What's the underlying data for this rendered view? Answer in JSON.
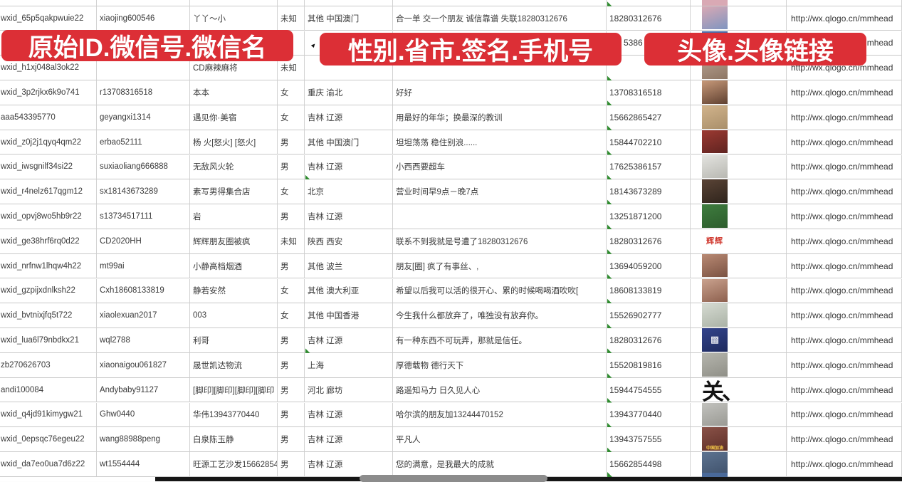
{
  "banners": [
    {
      "text": "原始ID.微信号.微信名"
    },
    {
      "text": "性别.省市.签名.手机号"
    },
    {
      "text": "头像.头像链接"
    }
  ],
  "colors": {
    "banner_red": "#dc2f36",
    "grid_line": "#c9c9c9",
    "cell_text": "#3a3a3a",
    "error_flag_green": "#2f8a2f",
    "scrollbar_thumb": "#8c8c8c",
    "scrollbar_track": "#161616"
  },
  "rows": [
    {
      "wxid": "wxid_65p5qakpwuie22",
      "account": "xiaojing600546",
      "name": "丫丫～小",
      "gender": "未知",
      "province": "其他 中国澳门",
      "signature": "合一单 交一个朋友 诚信靠谱 失联18280312676",
      "phone": "18280312676",
      "phone_flag": true,
      "phone_partial": false,
      "province_flag": false,
      "link": "http://wx.qlogo.cn/mmhead",
      "avatar": {
        "c1": "#d9a9b4",
        "c2": "#7f95c0",
        "label": "",
        "style": "photo"
      }
    },
    {
      "wxid": "",
      "account": "",
      "name": "",
      "gender": "",
      "province": "",
      "signature": "",
      "phone": "5386",
      "phone_flag": false,
      "phone_partial": true,
      "province_flag": false,
      "link": "http://wx.qlogo.cn/mmhead",
      "avatar": {
        "c1": "#4a72b0",
        "c2": "#3a5a94",
        "label": "",
        "style": "photo"
      }
    },
    {
      "wxid": "wxid_h1xj048al3ok22",
      "account": "",
      "name": "CD麻辣麻将",
      "gender": "未知",
      "province": "",
      "signature": "",
      "phone": "",
      "phone_flag": false,
      "phone_partial": false,
      "province_flag": false,
      "link": "http://wx.qlogo.cn/mmhead",
      "avatar": {
        "c1": "#b9a393",
        "c2": "#8d7664",
        "label": "",
        "style": "photo"
      }
    },
    {
      "wxid": "wxid_3p2rjkx6k9o741",
      "account": "r13708316518",
      "name": "本本",
      "gender": "女",
      "province": "重庆 渝北",
      "signature": "好好",
      "phone": "13708316518",
      "phone_flag": true,
      "phone_partial": false,
      "province_flag": false,
      "link": "http://wx.qlogo.cn/mmhead",
      "avatar": {
        "c1": "#c89a7a",
        "c2": "#5f4030",
        "label": "",
        "style": "photo"
      }
    },
    {
      "wxid": "aaa543395770",
      "account": "geyangxi1314",
      "name": "遇见你·美宿",
      "gender": "女",
      "province": "吉林 辽源",
      "signature": "用最好的年华；换最深的教训",
      "phone": "15662865427",
      "phone_flag": true,
      "phone_partial": false,
      "province_flag": false,
      "link": "http://wx.qlogo.cn/mmhead",
      "avatar": {
        "c1": "#d2b48c",
        "c2": "#a98f6a",
        "label": "",
        "style": "photo"
      }
    },
    {
      "wxid": "wxid_z0j2j1qyq4qm22",
      "account": "erbao52111",
      "name": "杨 火[怒火] [怒火]",
      "gender": "男",
      "province": "其他 中国澳门",
      "signature": "坦坦荡荡 稳住别浪......",
      "phone": "15844702210",
      "phone_flag": true,
      "phone_partial": false,
      "province_flag": false,
      "link": "http://wx.qlogo.cn/mmhead",
      "avatar": {
        "c1": "#9c3a32",
        "c2": "#5f2320",
        "label": "",
        "style": "photo"
      }
    },
    {
      "wxid": "wxid_iwsgnilf34si22",
      "account": "suxiaoliang666888",
      "name": "无敌风火轮",
      "gender": "男",
      "province": "吉林 辽源",
      "signature": "小西西要超车",
      "phone": "17625386157",
      "phone_flag": true,
      "phone_partial": false,
      "province_flag": false,
      "link": "http://wx.qlogo.cn/mmhead",
      "avatar": {
        "c1": "#e3e3df",
        "c2": "#b8b8b2",
        "label": "",
        "style": "photo"
      }
    },
    {
      "wxid": "wxid_r4nelz617qgm12",
      "account": "sx18143673289",
      "name": "素写男得集合店",
      "gender": "女",
      "province": "北京",
      "signature": "营业时间早9点－晚7点",
      "phone": "18143673289",
      "phone_flag": true,
      "phone_partial": false,
      "province_flag": true,
      "link": "http://wx.qlogo.cn/mmhead",
      "avatar": {
        "c1": "#5a4436",
        "c2": "#2f241c",
        "label": "",
        "style": "photo"
      }
    },
    {
      "wxid": "wxid_opvj8wo5hb9r22",
      "account": "s13734517111",
      "name": "岩",
      "gender": "男",
      "province": "吉林 辽源",
      "signature": "",
      "phone": "13251871200",
      "phone_flag": true,
      "phone_partial": false,
      "province_flag": false,
      "link": "http://wx.qlogo.cn/mmhead",
      "avatar": {
        "c1": "#3f7d3f",
        "c2": "#2c5c2c",
        "label": "",
        "style": "photo"
      }
    },
    {
      "wxid": "wxid_ge38hrf6rq0d22",
      "account": "CD2020HH",
      "name": "辉辉朋友圈被疯",
      "gender": "未知",
      "province": "陕西 西安",
      "signature": "联系不到我就是号遭了18280312676",
      "phone": "18280312676",
      "phone_flag": true,
      "phone_partial": false,
      "province_flag": false,
      "link": "http://wx.qlogo.cn/mmhead",
      "avatar": {
        "c1": "#ffffff",
        "c2": "#ffffff",
        "label": "辉辉",
        "label_color": "#d03a30",
        "style": "name-red"
      }
    },
    {
      "wxid": "wxid_nrfnw1lhqw4h22",
      "account": "mt99ai",
      "name": "小静高档烟酒",
      "gender": "男",
      "province": "其他 波兰",
      "signature": "朋友[圈] 疯了有事丝、,",
      "phone": "13694059200",
      "phone_flag": true,
      "phone_partial": false,
      "province_flag": false,
      "link": "http://wx.qlogo.cn/mmhead",
      "avatar": {
        "c1": "#b98a74",
        "c2": "#7a5242",
        "label": "",
        "style": "photo"
      }
    },
    {
      "wxid": "wxid_gzpijxdnlksh22",
      "account": "Cxh18608133819",
      "name": "静若安然",
      "gender": "女",
      "province": "其他 澳大利亚",
      "signature": "希望以后我可以活的很开心、累的时候喝喝酒吹吹[",
      "phone": "18608133819",
      "phone_flag": true,
      "phone_partial": false,
      "province_flag": false,
      "link": "http://wx.qlogo.cn/mmhead",
      "avatar": {
        "c1": "#caa28e",
        "c2": "#8d604e",
        "label": "",
        "style": "photo"
      }
    },
    {
      "wxid": "wxid_bvtnixjfq5t722",
      "account": "xiaolexuan2017",
      "name": "003",
      "gender": "女",
      "province": "其他 中国香港",
      "signature": "今生我什么都放弃了，唯独没有放弃你。",
      "phone": "15526902777",
      "phone_flag": true,
      "phone_partial": false,
      "province_flag": false,
      "link": "http://wx.qlogo.cn/mmhead",
      "avatar": {
        "c1": "#d6dbd2",
        "c2": "#aab2a6",
        "label": "",
        "style": "photo"
      }
    },
    {
      "wxid": "wxid_lua6l79nbdkx21",
      "account": "wql2788",
      "name": "利哥",
      "gender": "男",
      "province": "吉林 辽源",
      "signature": "有一种东西不可玩弄，那就是信任。",
      "phone": "18280312676",
      "phone_flag": true,
      "phone_partial": false,
      "province_flag": false,
      "link": "http://wx.qlogo.cn/mmhead",
      "avatar": {
        "c1": "#33448c",
        "c2": "#1e2a5e",
        "label": "▩",
        "style": "qr"
      }
    },
    {
      "wxid": "zb270626703",
      "account": "xiaonaigou061827",
      "name": "晟世凯达物流",
      "gender": "男",
      "province": "上海",
      "signature": "厚德载物 德行天下",
      "phone": "15520819816",
      "phone_flag": true,
      "phone_partial": false,
      "province_flag": true,
      "link": "http://wx.qlogo.cn/mmhead",
      "avatar": {
        "c1": "#b5b5ad",
        "c2": "#8f8f87",
        "label": "",
        "style": "photo"
      }
    },
    {
      "wxid": "andi100084",
      "account": "Andybaby91127",
      "name": "[脚印][脚印][脚印][脚印",
      "gender": "男",
      "province": "河北 廊坊",
      "signature": "路遥知马力 日久见人心",
      "phone": "15944754555",
      "phone_flag": true,
      "phone_partial": false,
      "province_flag": false,
      "link": "http://wx.qlogo.cn/mmhead",
      "avatar": {
        "c1": "transparent",
        "c2": "transparent",
        "label": "关、",
        "label_color": "#141414",
        "style": "calligraphy"
      }
    },
    {
      "wxid": "wxid_q4jd91kimygw21",
      "account": "Ghw0440",
      "name": "华伟13943770440",
      "gender": "男",
      "province": "吉林 辽源",
      "signature": "哈尔滨的朋友加13244470152",
      "phone": "13943770440",
      "phone_flag": true,
      "phone_partial": false,
      "province_flag": false,
      "link": "http://wx.qlogo.cn/mmhead",
      "avatar": {
        "c1": "#c2c2be",
        "c2": "#9a9a94",
        "label": "",
        "style": "photo"
      }
    },
    {
      "wxid": "wxid_0epsqc76egeu22",
      "account": "wang88988peng",
      "name": "白泉陈玉静",
      "gender": "男",
      "province": "吉林 辽源",
      "signature": "平凡人",
      "phone": "13943757555",
      "phone_flag": true,
      "phone_partial": false,
      "province_flag": false,
      "link": "http://wx.qlogo.cn/mmhead",
      "avatar": {
        "c1": "#8a5248",
        "c2": "#5e2f28",
        "label": "中国加油",
        "label_color": "#ffd24a",
        "style": "strip"
      }
    },
    {
      "wxid": "wxid_da7eo0ua7d6z22",
      "account": "wt1554444",
      "name": "旺源工艺沙发15662854",
      "gender": "男",
      "province": "吉林 辽源",
      "signature": "您的满意，是我最大的成就",
      "phone": "15662854498",
      "phone_flag": true,
      "phone_partial": false,
      "province_flag": false,
      "link": "http://wx.qlogo.cn/mmhead",
      "avatar": {
        "c1": "#5d7390",
        "c2": "#3f516b",
        "label": "",
        "style": "photo"
      }
    }
  ]
}
